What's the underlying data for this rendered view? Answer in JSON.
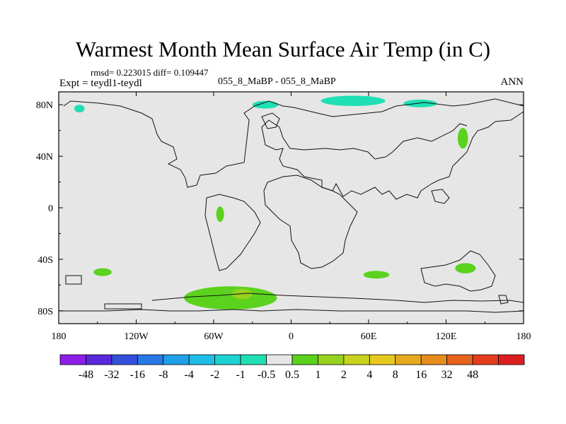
{
  "chart_data": {
    "type": "heatmap",
    "title": "Warmest Month Mean Surface Air Temp (in C)",
    "rmsd_text": "rmsd= 0.223015 diff= 0.109447",
    "left_label": "Expt = teydl1-teydl",
    "center_label": "055_8_MaBP - 055_8_MaBP",
    "right_label": "ANN",
    "x_ticks": [
      {
        "value": -180,
        "label": "180"
      },
      {
        "value": -120,
        "label": "120W"
      },
      {
        "value": -60,
        "label": "60W"
      },
      {
        "value": 0,
        "label": "0"
      },
      {
        "value": 60,
        "label": "60E"
      },
      {
        "value": 120,
        "label": "120E"
      },
      {
        "value": 180,
        "label": "180"
      }
    ],
    "y_ticks": [
      {
        "value": 80,
        "label": "80N"
      },
      {
        "value": 40,
        "label": "40N"
      },
      {
        "value": 0,
        "label": "0"
      },
      {
        "value": -40,
        "label": "40S"
      },
      {
        "value": -80,
        "label": "80S"
      }
    ],
    "xlim": [
      -180,
      180
    ],
    "ylim": [
      -90,
      90
    ],
    "colorbar": {
      "colors": [
        "#8c1ee6",
        "#5a28dc",
        "#3250dc",
        "#2878e6",
        "#1ea0e6",
        "#1ebee6",
        "#1ed2d2",
        "#1ee0b4",
        "#e6e6e6",
        "#5ad21e",
        "#96d21e",
        "#c8d21e",
        "#e6c81e",
        "#e6aa1e",
        "#e68c1e",
        "#e6641e",
        "#e63c1e",
        "#dc1e1e"
      ],
      "labels": [
        "-48",
        "-32",
        "-16",
        "-8",
        "-4",
        "-2",
        "-1",
        "-0.5",
        "0.5",
        "1",
        "2",
        "4",
        "8",
        "16",
        "32",
        "48"
      ]
    },
    "anomaly_regions": [
      {
        "name": "arctic-siberia",
        "lon": 48,
        "lat": 83,
        "rx": 25,
        "ry": 4,
        "category": "-1 to -0.5"
      },
      {
        "name": "arctic-east",
        "lon": 100,
        "lat": 81,
        "rx": 13,
        "ry": 3,
        "category": "-1 to -0.5"
      },
      {
        "name": "greenland-north",
        "lon": -20,
        "lat": 80,
        "rx": 10,
        "ry": 3,
        "category": "-1 to -0.5"
      },
      {
        "name": "alaska",
        "lon": -164,
        "lat": 77,
        "rx": 4,
        "ry": 3,
        "category": "-1 to -0.5"
      },
      {
        "name": "east-asia",
        "lon": 133,
        "lat": 54,
        "rx": 4,
        "ry": 8,
        "category": "0.5 to 1"
      },
      {
        "name": "south-america",
        "lon": -55,
        "lat": -5,
        "rx": 3,
        "ry": 6,
        "category": "0.5 to 1"
      },
      {
        "name": "south-pacific",
        "lon": -146,
        "lat": -50,
        "rx": 7,
        "ry": 3,
        "category": "0.5 to 1"
      },
      {
        "name": "southern-ocean-indian",
        "lon": 66,
        "lat": -52,
        "rx": 10,
        "ry": 3,
        "category": "0.5 to 1"
      },
      {
        "name": "australia",
        "lon": 135,
        "lat": -47,
        "rx": 8,
        "ry": 4,
        "category": "0.5 to 1"
      },
      {
        "name": "antarctic-atlantic",
        "lon": -47,
        "lat": -70,
        "rx": 36,
        "ry": 9,
        "category": "0.5 to 1"
      },
      {
        "name": "antarctic-atlantic-core",
        "lon": -38,
        "lat": -67,
        "rx": 8,
        "ry": 4,
        "category": "1 to 2"
      }
    ]
  }
}
